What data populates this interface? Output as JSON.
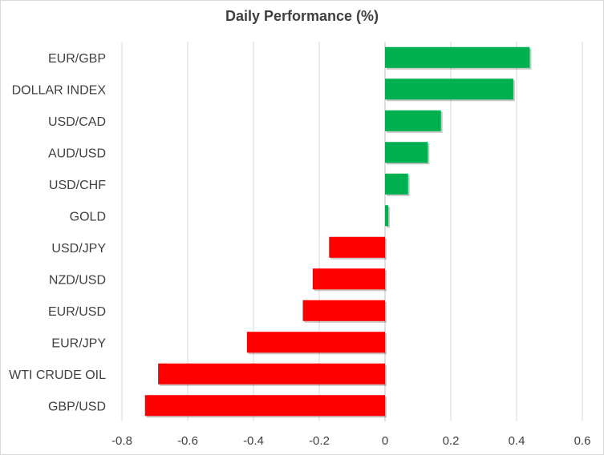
{
  "chart_data": {
    "type": "bar",
    "orientation": "horizontal",
    "title": "Daily Performance (%)",
    "xlabel": "",
    "ylabel": "",
    "categories": [
      "EUR/GBP",
      "DOLLAR INDEX",
      "USD/CAD",
      "AUD/USD",
      "USD/CHF",
      "GOLD",
      "USD/JPY",
      "NZD/USD",
      "EUR/USD",
      "EUR/JPY",
      "WTI CRUDE OIL",
      "GBP/USD"
    ],
    "values": [
      0.44,
      0.39,
      0.17,
      0.13,
      0.07,
      0.01,
      -0.17,
      -0.22,
      -0.25,
      -0.42,
      -0.69,
      -0.73
    ],
    "xlim": [
      -0.8,
      0.6
    ],
    "xticks": [
      -0.8,
      -0.6,
      -0.4,
      -0.2,
      0,
      0.2,
      0.4,
      0.6
    ],
    "xtick_labels": [
      "-0.8",
      "-0.6",
      "-0.4",
      "-0.2",
      "0",
      "0.2",
      "0.4",
      "0.6"
    ],
    "grid": true,
    "colors": {
      "positive": "#00b050",
      "negative": "#ff0000",
      "grid": "#d9d9d9",
      "text": "#404040"
    }
  }
}
